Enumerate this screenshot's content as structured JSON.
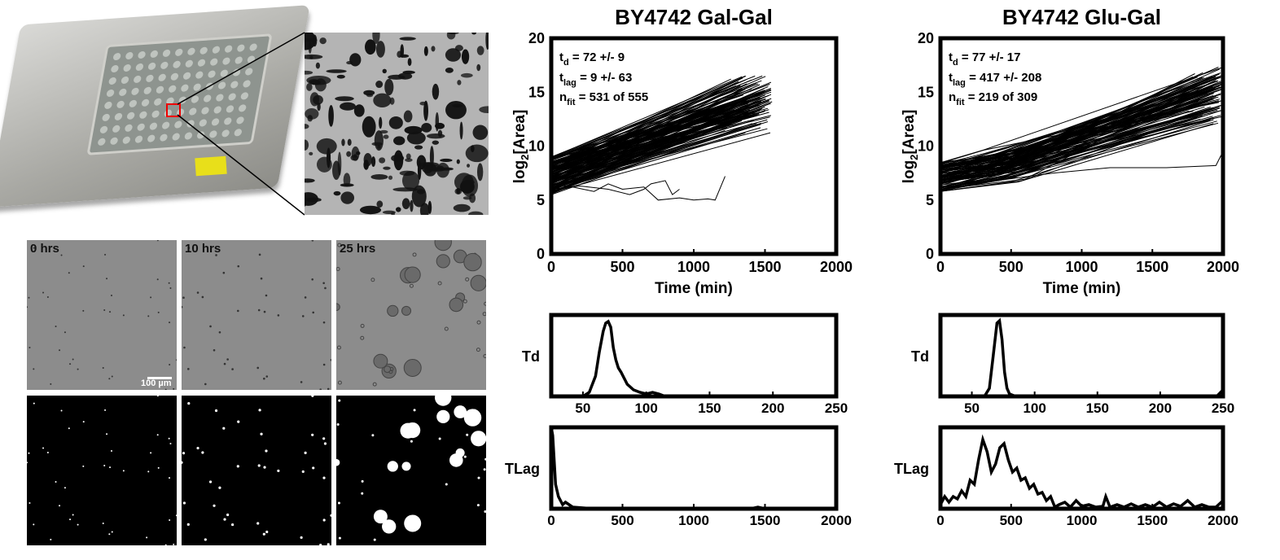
{
  "photo": {
    "description_label": ""
  },
  "microscopy": {
    "timepoints": [
      "0 hrs",
      "10 hrs",
      "25 hrs"
    ],
    "scale_bar": "100 µm"
  },
  "chart_data": [
    {
      "type": "line",
      "title": "BY4742 Gal-Gal",
      "xlabel": "Time (min)",
      "ylabel": "log2[Area]",
      "xlim": [
        0,
        2000
      ],
      "ylim": [
        0,
        20
      ],
      "xticks": [
        "0",
        "500",
        "1000",
        "1500",
        "2000"
      ],
      "yticks": [
        "0",
        "5",
        "10",
        "15",
        "20"
      ],
      "annotations": {
        "td": "t_d = 72 +/- 9",
        "tlag": "t_lag = 9 +/- 63",
        "nfit": "n_fit = 531 of 555",
        "td_label": "t",
        "td_sub": "d",
        "td_val": " = 72 +/- 9",
        "tlag_label": "t",
        "tlag_sub": "lag",
        "tlag_val": " = 9 +/- 63",
        "nfit_label": "n",
        "nfit_sub": "fit",
        "nfit_val": " = 531 of 555"
      },
      "curves": {
        "count": 140,
        "lag": 0,
        "y_start": [
          5.5,
          9
        ],
        "x_end": [
          1100,
          1550
        ],
        "y_end": [
          11,
          16.5
        ]
      },
      "outliers": [
        [
          [
            0,
            6.5
          ],
          [
            150,
            6.2
          ],
          [
            300,
            5.8
          ],
          [
            400,
            6.5
          ],
          [
            500,
            6
          ],
          [
            650,
            6.2
          ],
          [
            750,
            5
          ],
          [
            900,
            5.2
          ],
          [
            1000,
            5
          ],
          [
            1100,
            5.1
          ],
          [
            1150,
            5
          ],
          [
            1220,
            7.2
          ]
        ],
        [
          [
            0,
            6
          ],
          [
            200,
            6.3
          ],
          [
            400,
            6
          ],
          [
            550,
            5.5
          ],
          [
            650,
            6
          ],
          [
            700,
            6.5
          ],
          [
            800,
            6.8
          ],
          [
            850,
            5.5
          ],
          [
            900,
            6
          ]
        ]
      ]
    },
    {
      "type": "line",
      "title": "BY4742 Glu-Gal",
      "xlabel": "Time (min)",
      "ylabel": "log2[Area]",
      "xlim": [
        0,
        2000
      ],
      "ylim": [
        0,
        20
      ],
      "xticks": [
        "0",
        "500",
        "1000",
        "1500",
        "2000"
      ],
      "yticks": [
        "0",
        "5",
        "10",
        "15",
        "20"
      ],
      "annotations": {
        "td_label": "t",
        "td_sub": "d",
        "td_val": " = 77 +/- 17",
        "tlag_label": "t",
        "tlag_sub": "lag",
        "tlag_val": " = 417 +/- 208",
        "nfit_label": "n",
        "nfit_sub": "fit",
        "nfit_val": " = 219 of 309"
      },
      "curves": {
        "count": 110,
        "lag": [
          300,
          600
        ],
        "y_start": [
          5.8,
          8.5
        ],
        "x_end": [
          1700,
          2000
        ],
        "y_end": [
          12,
          17.5
        ]
      },
      "outliers": [
        [
          [
            0,
            6
          ],
          [
            400,
            6.8
          ],
          [
            800,
            7.5
          ],
          [
            1200,
            8
          ],
          [
            1600,
            8
          ],
          [
            1950,
            8.2
          ],
          [
            2000,
            9.5
          ]
        ]
      ]
    },
    {
      "type": "line",
      "title": "",
      "ylabel": "Td",
      "xlim": [
        25,
        250
      ],
      "xticks": [
        "50",
        "100",
        "150",
        "200",
        "250"
      ],
      "x": [
        25,
        40,
        50,
        55,
        60,
        63,
        66,
        68,
        70,
        72,
        74,
        76,
        78,
        80,
        85,
        90,
        95,
        100,
        105,
        110,
        115,
        120,
        250
      ],
      "y": [
        0,
        0,
        0,
        0.05,
        0.25,
        0.55,
        0.8,
        0.9,
        0.92,
        0.85,
        0.6,
        0.45,
        0.35,
        0.3,
        0.15,
        0.08,
        0.05,
        0.03,
        0.05,
        0.03,
        0,
        0,
        0
      ]
    },
    {
      "type": "line",
      "title": "",
      "ylabel": "Td",
      "xlim": [
        25,
        250
      ],
      "xticks": [
        "50",
        "100",
        "150",
        "200",
        "250"
      ],
      "x": [
        25,
        50,
        60,
        64,
        67,
        70,
        72,
        74,
        76,
        78,
        80,
        85,
        90,
        245,
        250
      ],
      "y": [
        0,
        0,
        0,
        0.1,
        0.5,
        0.9,
        0.93,
        0.7,
        0.3,
        0.1,
        0.03,
        0,
        0,
        0,
        0.08
      ]
    },
    {
      "type": "line",
      "title": "",
      "ylabel": "TLag",
      "xlim": [
        0,
        2000
      ],
      "xticks": [
        "0",
        "500",
        "1000",
        "1500",
        "2000"
      ],
      "x": [
        0,
        10,
        30,
        50,
        80,
        100,
        150,
        300,
        1000,
        1400,
        1450,
        1500,
        2000
      ],
      "y": [
        1.0,
        0.9,
        0.3,
        0.15,
        0.05,
        0.08,
        0.02,
        0,
        0,
        0,
        0.02,
        0,
        0
      ]
    },
    {
      "type": "line",
      "title": "",
      "ylabel": "TLag",
      "xlim": [
        0,
        2000
      ],
      "xticks": [
        "0",
        "500",
        "1000",
        "1500",
        "2000"
      ],
      "x": [
        0,
        30,
        60,
        90,
        120,
        150,
        180,
        210,
        240,
        270,
        300,
        330,
        360,
        390,
        420,
        450,
        480,
        510,
        540,
        570,
        600,
        630,
        660,
        690,
        720,
        750,
        780,
        810,
        840,
        880,
        920,
        960,
        1000,
        1050,
        1100,
        1150,
        1170,
        1200,
        1250,
        1300,
        1350,
        1400,
        1450,
        1500,
        1550,
        1600,
        1650,
        1700,
        1750,
        1800,
        1850,
        1900,
        1950,
        2000
      ],
      "y": [
        0.05,
        0.15,
        0.08,
        0.15,
        0.12,
        0.22,
        0.15,
        0.35,
        0.3,
        0.6,
        0.85,
        0.7,
        0.45,
        0.55,
        0.75,
        0.8,
        0.6,
        0.45,
        0.5,
        0.35,
        0.38,
        0.25,
        0.3,
        0.18,
        0.2,
        0.1,
        0.15,
        0.02,
        0.05,
        0.08,
        0.02,
        0.1,
        0.03,
        0.05,
        0.02,
        0.03,
        0.15,
        0.02,
        0.05,
        0.02,
        0.06,
        0.02,
        0.05,
        0.02,
        0.08,
        0.02,
        0.06,
        0.03,
        0.1,
        0.02,
        0.05,
        0.02,
        0.02,
        0.1
      ]
    }
  ]
}
